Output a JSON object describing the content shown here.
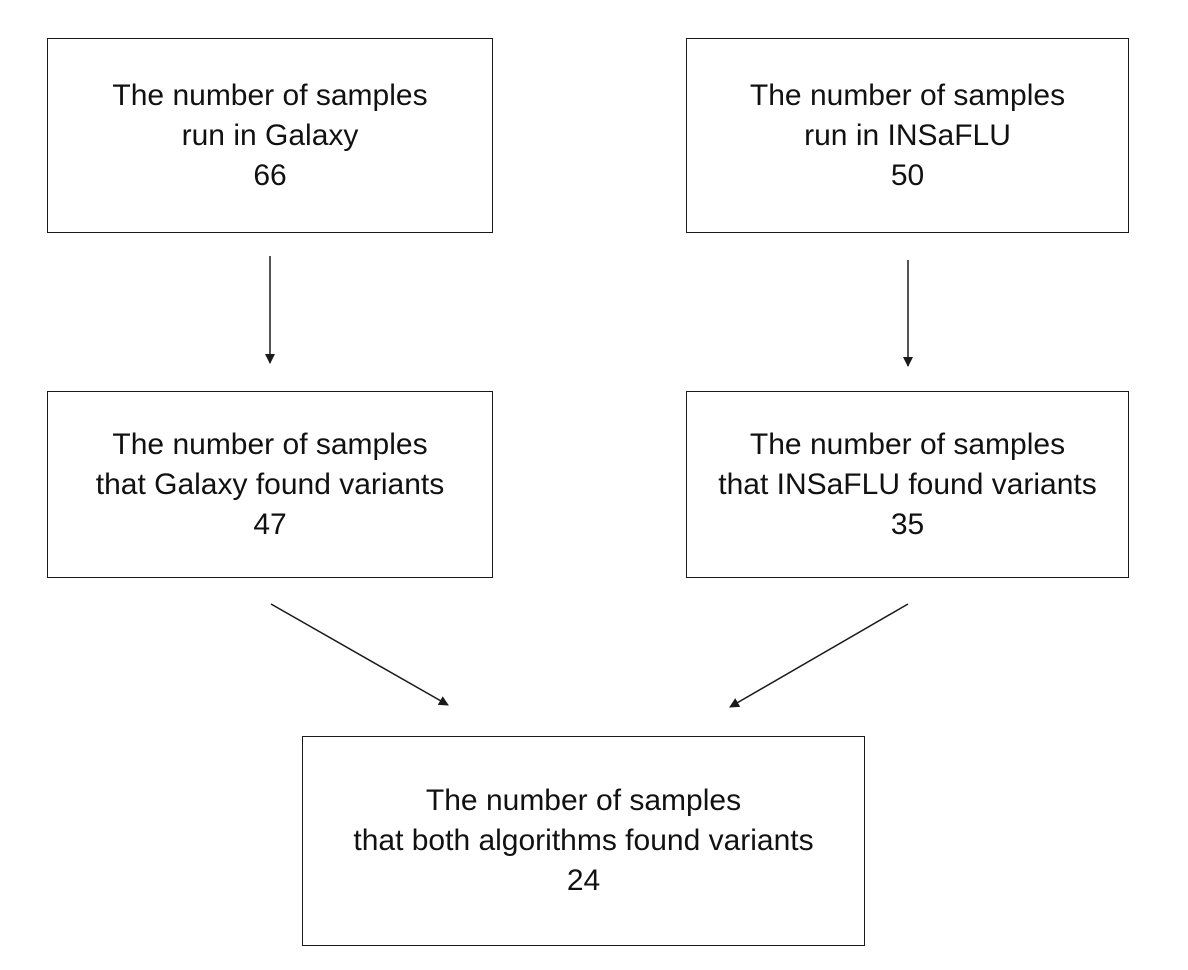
{
  "nodes": {
    "galaxy_run": {
      "line1": "The number of samples",
      "line2": "run in Galaxy",
      "value": "66"
    },
    "insaflu_run": {
      "line1": "The number of samples",
      "line2": "run in INSaFLU",
      "value": "50"
    },
    "galaxy_found": {
      "line1": "The number of samples",
      "line2": "that Galaxy found variants",
      "value": "47"
    },
    "insaflu_found": {
      "line1": "The number of samples",
      "line2": "that INSaFLU found variants",
      "value": "35"
    },
    "both_found": {
      "line1": "The number of samples",
      "line2": "that both algorithms found variants",
      "value": "24"
    }
  },
  "edges": [
    {
      "from": "galaxy_run",
      "to": "galaxy_found"
    },
    {
      "from": "insaflu_run",
      "to": "insaflu_found"
    },
    {
      "from": "galaxy_found",
      "to": "both_found"
    },
    {
      "from": "insaflu_found",
      "to": "both_found"
    }
  ]
}
